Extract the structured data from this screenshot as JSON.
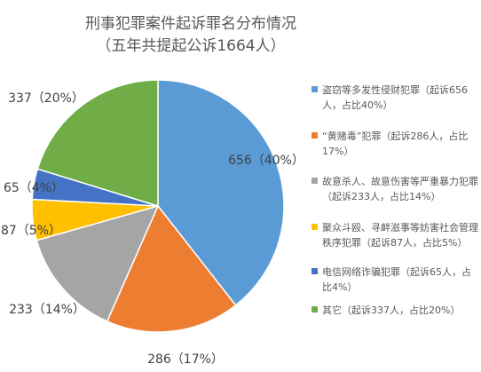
{
  "chart_data": {
    "type": "pie",
    "title": "刑事犯罪案件起诉罪名分布情况",
    "subtitle": "（五年共提起公诉1664人）",
    "total": 1664,
    "slices": [
      {
        "value": 656,
        "percent": 40,
        "label": "656（40%）",
        "color": "#5b9bd5",
        "legend": "盗窃等多发性侵财犯罪（起诉656人，占比40%）"
      },
      {
        "value": 286,
        "percent": 17,
        "label": "286（17%）",
        "color": "#ed7d31",
        "legend": "“黄赌毒”犯罪（起诉286人，占比17%）"
      },
      {
        "value": 233,
        "percent": 14,
        "label": "233（14%）",
        "color": "#a5a5a5",
        "legend": "故意杀人、故意伤害等严重暴力犯罪（起诉233人，占比14%）"
      },
      {
        "value": 87,
        "percent": 5,
        "label": "87（5%）",
        "color": "#ffc000",
        "legend": "聚众斗殴、寻衅滋事等妨害社会管理秩序犯罪（起诉87人，占比5%）"
      },
      {
        "value": 65,
        "percent": 4,
        "label": "65（4%）",
        "color": "#4472c4",
        "legend": "电信网络诈骗犯罪（起诉65人，占比4%）"
      },
      {
        "value": 337,
        "percent": 20,
        "label": "337（20%）",
        "color": "#70ad47",
        "legend": "其它（起诉337人，占比20%）"
      }
    ],
    "legend_position": "right"
  }
}
